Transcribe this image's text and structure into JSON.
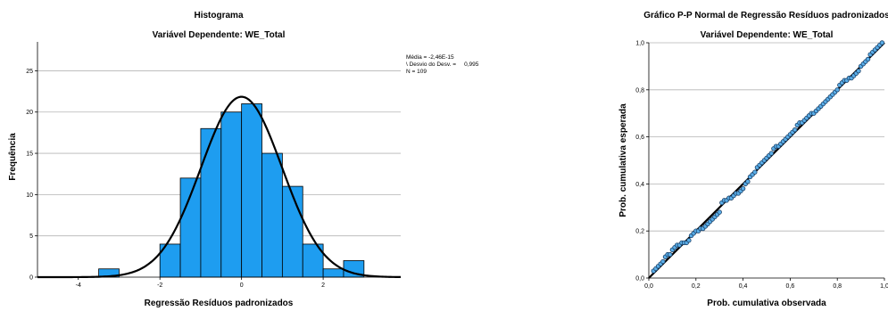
{
  "chart_data": [
    {
      "type": "bar",
      "title": "Histograma",
      "subtitle": "Variável Dependente: WE_Total",
      "xlabel": "Regressão Resíduos padronizados",
      "ylabel": "Frequência",
      "xlim": [
        -5,
        3.9
      ],
      "ylim": [
        0,
        28.5
      ],
      "xticks": [
        -4,
        -2,
        0,
        2
      ],
      "yticks": [
        0,
        5,
        10,
        15,
        20,
        25
      ],
      "grid": true,
      "bins": [
        {
          "x0": -3.5,
          "x1": -3.0,
          "count": 1
        },
        {
          "x0": -2.0,
          "x1": -1.5,
          "count": 4
        },
        {
          "x0": -1.5,
          "x1": -1.0,
          "count": 12
        },
        {
          "x0": -1.0,
          "x1": -0.5,
          "count": 18
        },
        {
          "x0": -0.5,
          "x1": 0.0,
          "count": 20
        },
        {
          "x0": 0.0,
          "x1": 0.5,
          "count": 21
        },
        {
          "x0": 0.5,
          "x1": 1.0,
          "count": 15
        },
        {
          "x0": 1.0,
          "x1": 1.5,
          "count": 11
        },
        {
          "x0": 1.5,
          "x1": 2.0,
          "count": 4
        },
        {
          "x0": 2.0,
          "x1": 2.5,
          "count": 1
        },
        {
          "x0": 2.5,
          "x1": 3.0,
          "count": 2
        }
      ],
      "normal_curve": {
        "mean": 0,
        "sd": 0.995,
        "n": 109,
        "bin_width": 0.5
      },
      "stats_text": [
        "Média = -2,46E-15",
        "\\ Desvio do Desv. =     0,995",
        "N = 109"
      ],
      "colors": {
        "bar": "#1e9df0",
        "curve": "#000000",
        "grid": "#b4b4b4"
      }
    },
    {
      "type": "scatter",
      "title": "Gráfico P-P Normal de Regressão Resíduos padronizados",
      "subtitle": "Variável Dependente: WE_Total",
      "xlabel": "Prob. cumulativa observada",
      "ylabel": "Prob. cumulativa esperada",
      "xlim": [
        0,
        1
      ],
      "ylim": [
        0,
        1
      ],
      "xtick_labels": [
        "0,0",
        "0,2",
        "0,4",
        "0,6",
        "0,8",
        "1,0"
      ],
      "ytick_labels": [
        "0,0",
        "0,2",
        "0,4",
        "0,6",
        "0,8",
        "1,0"
      ],
      "grid": true,
      "reference_line": [
        [
          0,
          0
        ],
        [
          1,
          1
        ]
      ],
      "points": [
        [
          0.02,
          0.03
        ],
        [
          0.03,
          0.04
        ],
        [
          0.04,
          0.05
        ],
        [
          0.05,
          0.06
        ],
        [
          0.06,
          0.07
        ],
        [
          0.07,
          0.09
        ],
        [
          0.08,
          0.1
        ],
        [
          0.09,
          0.1
        ],
        [
          0.1,
          0.12
        ],
        [
          0.11,
          0.13
        ],
        [
          0.12,
          0.14
        ],
        [
          0.13,
          0.14
        ],
        [
          0.14,
          0.15
        ],
        [
          0.15,
          0.15
        ],
        [
          0.16,
          0.15
        ],
        [
          0.17,
          0.16
        ],
        [
          0.18,
          0.18
        ],
        [
          0.19,
          0.19
        ],
        [
          0.2,
          0.2
        ],
        [
          0.21,
          0.2
        ],
        [
          0.22,
          0.21
        ],
        [
          0.23,
          0.21
        ],
        [
          0.24,
          0.22
        ],
        [
          0.25,
          0.23
        ],
        [
          0.26,
          0.24
        ],
        [
          0.27,
          0.25
        ],
        [
          0.28,
          0.26
        ],
        [
          0.29,
          0.27
        ],
        [
          0.3,
          0.28
        ],
        [
          0.31,
          0.32
        ],
        [
          0.32,
          0.33
        ],
        [
          0.33,
          0.33
        ],
        [
          0.34,
          0.34
        ],
        [
          0.35,
          0.34
        ],
        [
          0.36,
          0.35
        ],
        [
          0.37,
          0.36
        ],
        [
          0.38,
          0.36
        ],
        [
          0.39,
          0.37
        ],
        [
          0.4,
          0.38
        ],
        [
          0.41,
          0.4
        ],
        [
          0.42,
          0.41
        ],
        [
          0.43,
          0.43
        ],
        [
          0.44,
          0.44
        ],
        [
          0.45,
          0.45
        ],
        [
          0.46,
          0.47
        ],
        [
          0.47,
          0.48
        ],
        [
          0.48,
          0.49
        ],
        [
          0.49,
          0.5
        ],
        [
          0.5,
          0.51
        ],
        [
          0.51,
          0.52
        ],
        [
          0.52,
          0.53
        ],
        [
          0.53,
          0.55
        ],
        [
          0.54,
          0.56
        ],
        [
          0.55,
          0.56
        ],
        [
          0.56,
          0.57
        ],
        [
          0.57,
          0.58
        ],
        [
          0.58,
          0.59
        ],
        [
          0.59,
          0.6
        ],
        [
          0.6,
          0.61
        ],
        [
          0.61,
          0.62
        ],
        [
          0.62,
          0.63
        ],
        [
          0.63,
          0.65
        ],
        [
          0.64,
          0.66
        ],
        [
          0.65,
          0.66
        ],
        [
          0.66,
          0.67
        ],
        [
          0.67,
          0.68
        ],
        [
          0.68,
          0.69
        ],
        [
          0.69,
          0.7
        ],
        [
          0.7,
          0.7
        ],
        [
          0.71,
          0.71
        ],
        [
          0.72,
          0.72
        ],
        [
          0.73,
          0.73
        ],
        [
          0.74,
          0.74
        ],
        [
          0.75,
          0.75
        ],
        [
          0.76,
          0.76
        ],
        [
          0.77,
          0.77
        ],
        [
          0.78,
          0.78
        ],
        [
          0.79,
          0.79
        ],
        [
          0.8,
          0.8
        ],
        [
          0.81,
          0.82
        ],
        [
          0.82,
          0.83
        ],
        [
          0.83,
          0.84
        ],
        [
          0.84,
          0.84
        ],
        [
          0.85,
          0.85
        ],
        [
          0.86,
          0.85
        ],
        [
          0.87,
          0.86
        ],
        [
          0.88,
          0.87
        ],
        [
          0.89,
          0.88
        ],
        [
          0.9,
          0.9
        ],
        [
          0.91,
          0.91
        ],
        [
          0.92,
          0.92
        ],
        [
          0.93,
          0.93
        ],
        [
          0.94,
          0.95
        ],
        [
          0.95,
          0.96
        ],
        [
          0.96,
          0.97
        ],
        [
          0.97,
          0.98
        ],
        [
          0.98,
          0.99
        ],
        [
          0.99,
          1.0
        ]
      ],
      "colors": {
        "point_fill": "#5aaee8",
        "point_stroke": "#1a3f66",
        "line": "#000000",
        "grid": "#b4b4b4"
      }
    }
  ]
}
